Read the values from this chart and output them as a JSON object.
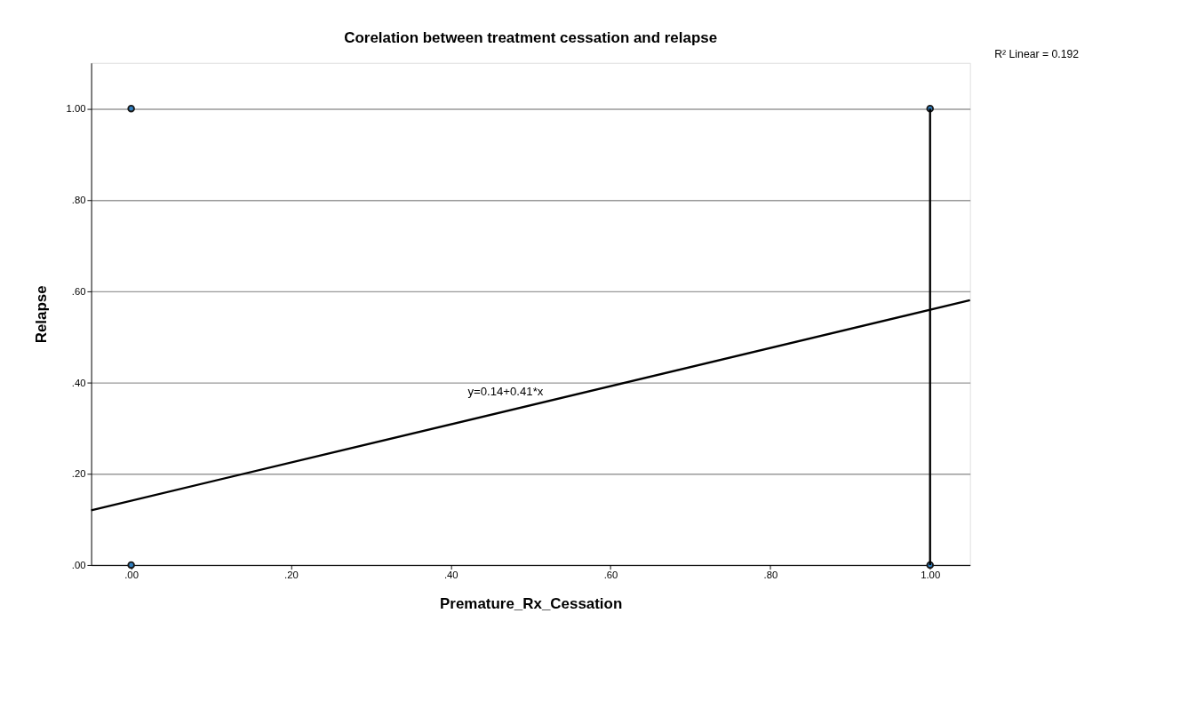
{
  "chart_data": {
    "type": "scatter",
    "title": "Corelation between treatment cessation and relapse",
    "xlabel": "Premature_Rx_Cessation",
    "ylabel": "Relapse",
    "series": [
      {
        "x": [
          0,
          0,
          1,
          1
        ],
        "values": [
          1,
          0,
          1,
          0
        ],
        "color": "#2f7fc1",
        "marker": "circle"
      },
      {
        "type": "line",
        "x": [
          1,
          1
        ],
        "values": [
          0,
          1
        ],
        "color": "#000000",
        "marker": "none"
      },
      {
        "type": "line",
        "x": [
          -0.05,
          1.05
        ],
        "values": [
          0.12,
          0.58
        ],
        "color": "#000000",
        "marker": "none"
      }
    ],
    "xlim": [
      -0.05,
      1.05
    ],
    "ylim": [
      0,
      1.1
    ],
    "xticks": [
      {
        "value": 0,
        "label": ".00"
      },
      {
        "value": 0.2,
        "label": ".20"
      },
      {
        "value": 0.4,
        "label": ".40"
      },
      {
        "value": 0.6,
        "label": ".60"
      },
      {
        "value": 0.8,
        "label": ".80"
      },
      {
        "value": 1,
        "label": "1.00"
      }
    ],
    "yticks": [
      {
        "value": 0,
        "label": ".00"
      },
      {
        "value": 0.2,
        "label": ".20"
      },
      {
        "value": 0.4,
        "label": ".40"
      },
      {
        "value": 0.6,
        "label": ".60"
      },
      {
        "value": 0.8,
        "label": ".80"
      },
      {
        "value": 1,
        "label": "1.00"
      }
    ],
    "annotations": [
      "R² Linear = 0.192",
      {
        "text": "y=0.14+0.41*x",
        "x": 0.5,
        "y": 0.35
      }
    ],
    "grid": "y",
    "line_style": "solid"
  }
}
